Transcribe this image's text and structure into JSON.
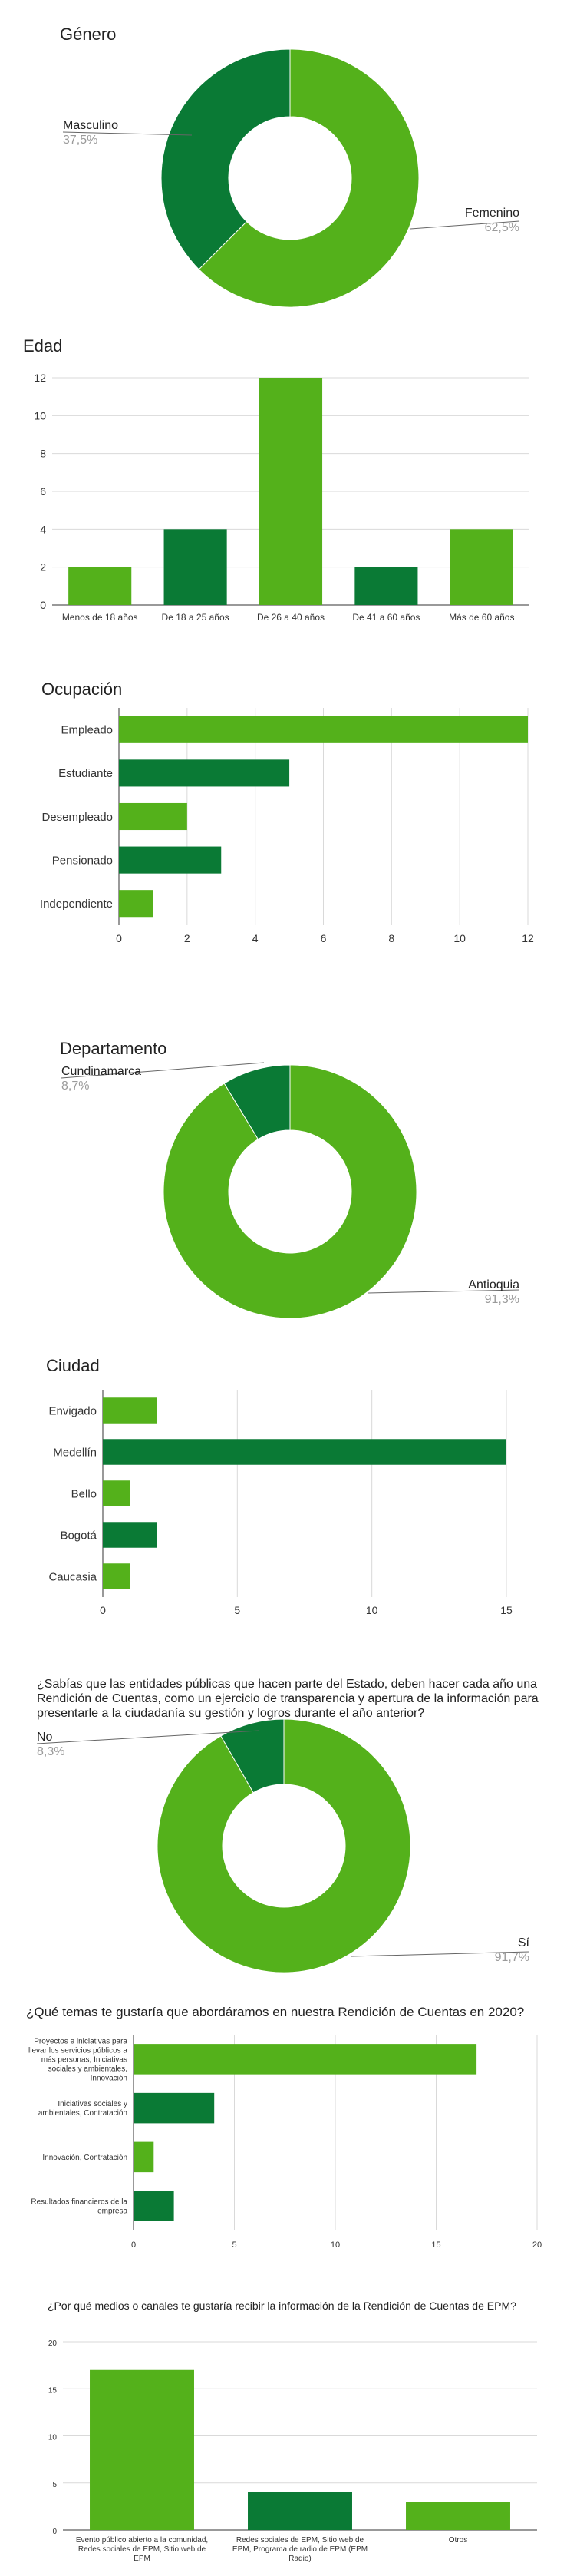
{
  "colors": {
    "light_green": "#54b11b",
    "dark_green": "#0a7a35",
    "grid": "#d9d9d9",
    "axis": "#333333",
    "label_gray": "#9a9a9a"
  },
  "chart_data": [
    {
      "type": "pie",
      "title": "Género",
      "categories": [
        "Masculino",
        "Femenino"
      ],
      "values": [
        37.5,
        62.5
      ],
      "percent_labels": [
        "37,5%",
        "62,5%"
      ]
    },
    {
      "type": "bar",
      "title": "Edad",
      "categories": [
        "Menos de 18 años",
        "De 18 a 25 años",
        "De 26 a 40 años",
        "De 41 a 60 años",
        "Más de 60 años"
      ],
      "values": [
        2,
        4,
        12,
        2,
        4
      ],
      "ylim": [
        0,
        12
      ],
      "yticks": [
        0,
        2,
        4,
        6,
        8,
        10,
        12
      ],
      "grid": true
    },
    {
      "type": "bar",
      "orientation": "horizontal",
      "title": "Ocupación",
      "categories": [
        "Empleado",
        "Estudiante",
        "Desempleado",
        "Pensionado",
        "Independiente"
      ],
      "values": [
        12,
        5,
        2,
        3,
        1
      ],
      "xlim": [
        0,
        12
      ],
      "xticks": [
        0,
        2,
        4,
        6,
        8,
        10,
        12
      ],
      "grid": true
    },
    {
      "type": "pie",
      "title": "Departamento",
      "categories": [
        "Cundinamarca",
        "Antioquia"
      ],
      "values": [
        8.7,
        91.3
      ],
      "percent_labels": [
        "8,7%",
        "91,3%"
      ]
    },
    {
      "type": "bar",
      "orientation": "horizontal",
      "title": "Ciudad",
      "categories": [
        "Envigado",
        "Medellín",
        "Bello",
        "Bogotá",
        "Caucasia"
      ],
      "values": [
        2,
        15,
        1,
        2,
        1
      ],
      "xlim": [
        0,
        15
      ],
      "xticks": [
        0,
        5,
        10,
        15
      ],
      "grid": true
    },
    {
      "type": "pie",
      "title": "¿Sabías que las entidades públicas que hacen parte del Estado, deben hacer cada año una Rendición de Cuentas, como un ejercicio de transparencia y apertura de la información para presentarle a la ciudadanía su gestión y logros durante el año anterior?",
      "title_lines": [
        "¿Sabías que las entidades públicas que hacen parte del Estado, deben hacer cada año una",
        "Rendición de Cuentas, como un ejercicio de transparencia y apertura de la información para",
        "presentarle a la ciudadanía su gestión y logros durante el año anterior?"
      ],
      "categories": [
        "No",
        "Sí"
      ],
      "values": [
        8.3,
        91.7
      ],
      "percent_labels": [
        "8,3%",
        "91,7%"
      ]
    },
    {
      "type": "bar",
      "orientation": "horizontal",
      "title": "¿Qué temas te gustaría que abordáramos en nuestra Rendición de Cuentas en 2020?",
      "categories": [
        "Proyectos e iniciativas para llevar los servicios públicos a más personas, Iniciativas sociales y ambientales, Innovación",
        "Iniciativas sociales y ambientales, Contratación",
        "Innovación, Contratación",
        "Resultados financieros de la empresa"
      ],
      "category_lines": [
        [
          "Proyectos e iniciativas para",
          "llevar los servicios públicos a",
          "más personas, Iniciativas",
          "sociales y ambientales,",
          "Innovación"
        ],
        [
          "Iniciativas sociales y",
          "ambientales, Contratación"
        ],
        [
          "Innovación, Contratación"
        ],
        [
          "Resultados financieros de la",
          "empresa"
        ]
      ],
      "values": [
        17,
        4,
        1,
        2
      ],
      "xlim": [
        0,
        20
      ],
      "xticks": [
        0,
        5,
        10,
        15,
        20
      ],
      "grid": true
    },
    {
      "type": "bar",
      "title": "¿Por qué medios o canales te gustaría recibir la información de la Rendición de Cuentas de EPM?",
      "categories": [
        "Evento público abierto a la comunidad, Redes sociales de EPM, Sitio web de EPM",
        "Redes sociales de EPM, Sitio web de EPM, Programa de radio de EPM (EPM Radio)",
        "Otros"
      ],
      "category_lines": [
        [
          "Evento público abierto a la comunidad,",
          "Redes sociales de EPM, Sitio web de",
          "EPM"
        ],
        [
          "Redes sociales de EPM, Sitio web de",
          "EPM, Programa de radio de EPM (EPM",
          "Radio)"
        ],
        [
          "Otros"
        ]
      ],
      "values": [
        17,
        4,
        3
      ],
      "ylim": [
        0,
        20
      ],
      "yticks": [
        0,
        5,
        10,
        15,
        20
      ],
      "grid": true
    }
  ]
}
